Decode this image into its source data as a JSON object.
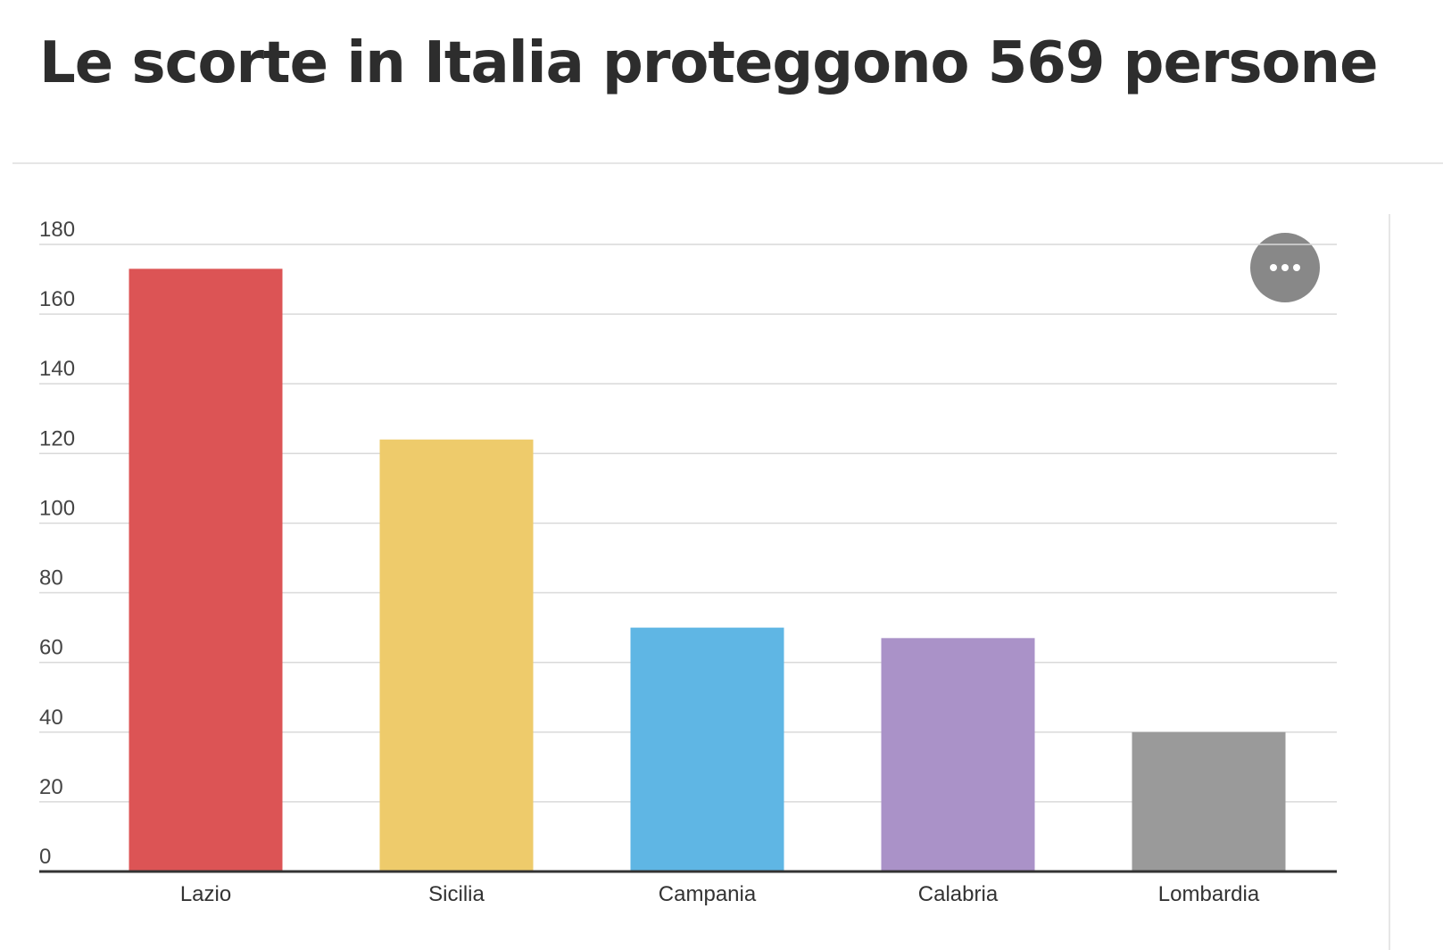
{
  "chart_data": {
    "type": "bar",
    "title": "Le scorte in Italia proteggono 569 persone",
    "categories": [
      "Lazio",
      "Sicilia",
      "Campania",
      "Calabria",
      "Lombardia"
    ],
    "values": [
      173,
      124,
      70,
      67,
      40
    ],
    "colors": [
      "#dc5455",
      "#eecb6b",
      "#5fb6e4",
      "#aa92c8",
      "#9a9a9a"
    ],
    "ylim": [
      0,
      180
    ],
    "yticks": [
      0,
      20,
      40,
      60,
      80,
      100,
      120,
      140,
      160,
      180
    ],
    "grid": true
  }
}
